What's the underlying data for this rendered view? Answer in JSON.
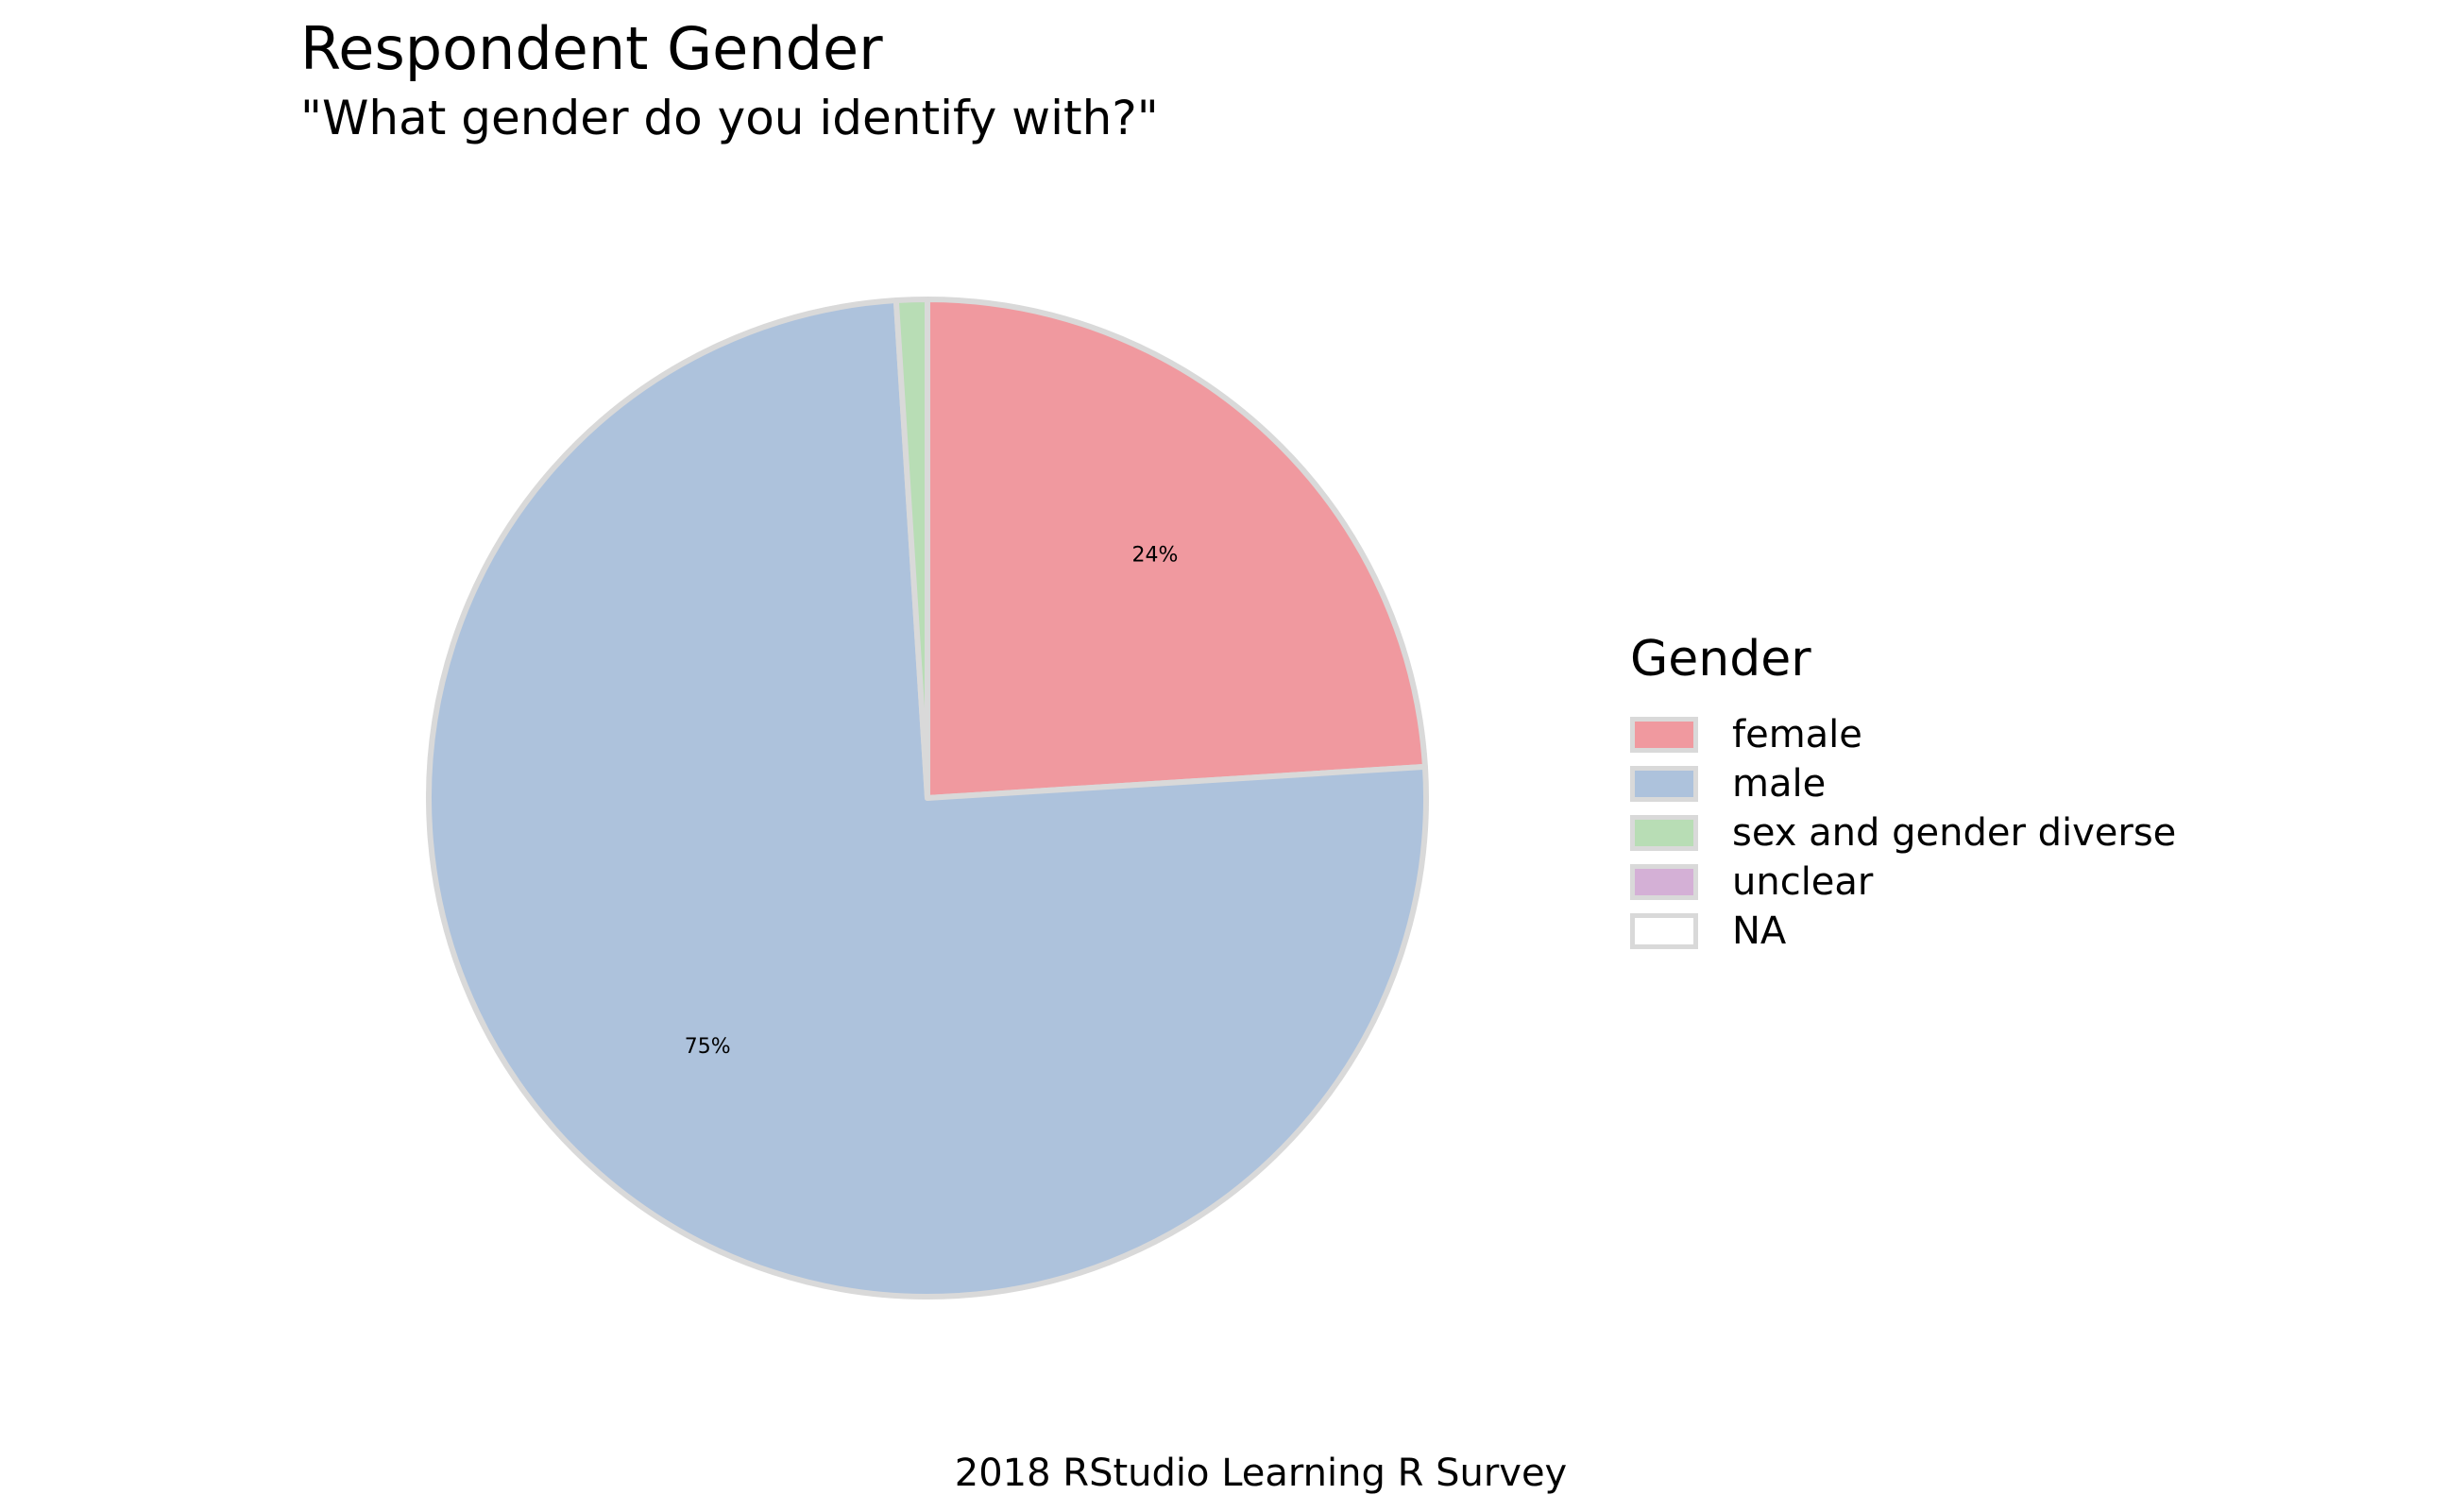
{
  "chart_data": {
    "type": "pie",
    "title": "Respondent Gender",
    "subtitle": "\"What gender do you identify with?\"",
    "caption": "2018 RStudio Learning R Survey",
    "legend_title": "Gender",
    "legend_position": "right",
    "categories": [
      "female",
      "male",
      "sex and gender diverse",
      "unclear",
      "NA"
    ],
    "values": [
      24,
      75,
      1,
      0,
      0
    ],
    "labels": [
      "24%",
      "75%",
      "",
      "",
      ""
    ],
    "colors": [
      "#F0999F",
      "#ADC2DC",
      "#B8DDB5",
      "#D4B0D6",
      "#FFFFFF"
    ],
    "slice_border_color": "#D9D9D9"
  }
}
